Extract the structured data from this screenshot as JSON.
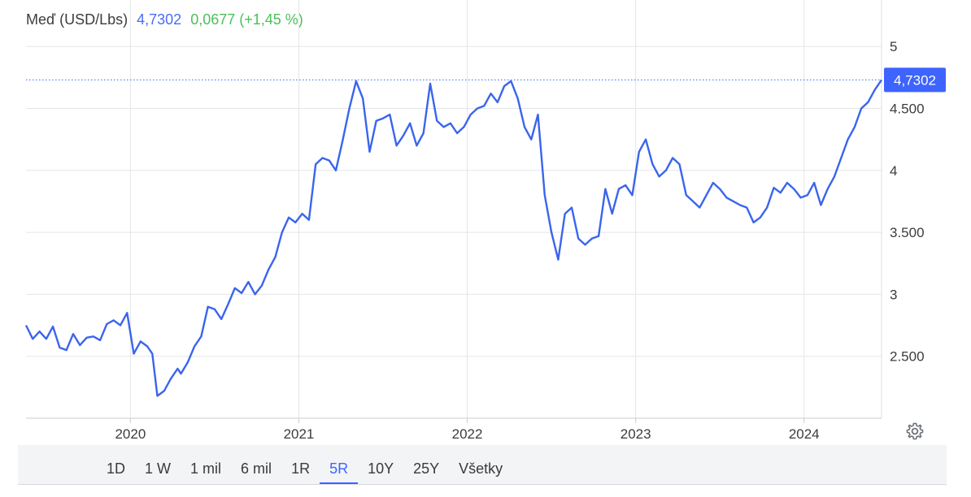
{
  "header": {
    "name": "Meď (USD/Lbs)",
    "price": "4,7302",
    "change": "0,0677 (+1,45 %)"
  },
  "price_tag": "4,7302",
  "tabs": [
    {
      "label": "1D",
      "active": false
    },
    {
      "label": "1 W",
      "active": false
    },
    {
      "label": "1 mil",
      "active": false
    },
    {
      "label": "6 mil",
      "active": false
    },
    {
      "label": "1R",
      "active": false
    },
    {
      "label": "5R",
      "active": true
    },
    {
      "label": "10Y",
      "active": false
    },
    {
      "label": "25Y",
      "active": false
    },
    {
      "label": "Všetky",
      "active": false
    }
  ],
  "colors": {
    "line": "#3a65ec",
    "price_tag_bg": "#3e64ff",
    "change_positive": "#4bbf5a",
    "price_text": "#4a6cf7",
    "grid": "#e3e5e8"
  },
  "icons": {
    "settings": "gear-icon"
  },
  "chart_data": {
    "type": "line",
    "title": "Meď (USD/Lbs)",
    "xlabel": "",
    "ylabel": "",
    "grid": true,
    "ylim": [
      2.0,
      5.1
    ],
    "xlim": [
      2019.38,
      2024.46
    ],
    "yticks": [
      2.5,
      3,
      3.5,
      4,
      4.5,
      5
    ],
    "ytick_labels": [
      "2.500",
      "3",
      "3.500",
      "4",
      "4.500",
      "5"
    ],
    "xticks": [
      2020,
      2021,
      2022,
      2023,
      2024
    ],
    "xtick_labels": [
      "2020",
      "2021",
      "2022",
      "2023",
      "2024"
    ],
    "last_value": 4.7302,
    "series": [
      {
        "name": "",
        "x": [
          2019.38,
          2019.42,
          2019.46,
          2019.5,
          2019.54,
          2019.58,
          2019.62,
          2019.66,
          2019.7,
          2019.74,
          2019.78,
          2019.82,
          2019.86,
          2019.9,
          2019.94,
          2019.98,
          2020.02,
          2020.06,
          2020.1,
          2020.13,
          2020.16,
          2020.2,
          2020.24,
          2020.28,
          2020.3,
          2020.34,
          2020.38,
          2020.42,
          2020.46,
          2020.5,
          2020.54,
          2020.58,
          2020.62,
          2020.66,
          2020.7,
          2020.74,
          2020.78,
          2020.82,
          2020.86,
          2020.9,
          2020.94,
          2020.98,
          2021.02,
          2021.06,
          2021.1,
          2021.14,
          2021.18,
          2021.22,
          2021.26,
          2021.3,
          2021.34,
          2021.38,
          2021.42,
          2021.46,
          2021.5,
          2021.54,
          2021.58,
          2021.62,
          2021.66,
          2021.7,
          2021.74,
          2021.78,
          2021.82,
          2021.86,
          2021.9,
          2021.94,
          2021.98,
          2022.02,
          2022.06,
          2022.1,
          2022.14,
          2022.18,
          2022.22,
          2022.26,
          2022.3,
          2022.34,
          2022.38,
          2022.42,
          2022.46,
          2022.5,
          2022.54,
          2022.58,
          2022.62,
          2022.66,
          2022.7,
          2022.74,
          2022.78,
          2022.82,
          2022.86,
          2022.9,
          2022.94,
          2022.98,
          2023.02,
          2023.06,
          2023.1,
          2023.14,
          2023.18,
          2023.22,
          2023.26,
          2023.3,
          2023.34,
          2023.38,
          2023.42,
          2023.46,
          2023.5,
          2023.54,
          2023.58,
          2023.62,
          2023.66,
          2023.7,
          2023.74,
          2023.78,
          2023.82,
          2023.86,
          2023.9,
          2023.94,
          2023.98,
          2024.02,
          2024.06,
          2024.1,
          2024.14,
          2024.18,
          2024.22,
          2024.26,
          2024.3,
          2024.34,
          2024.38,
          2024.42,
          2024.46
        ],
        "y": [
          2.75,
          2.64,
          2.7,
          2.64,
          2.74,
          2.57,
          2.55,
          2.68,
          2.59,
          2.65,
          2.66,
          2.63,
          2.76,
          2.79,
          2.75,
          2.85,
          2.52,
          2.62,
          2.58,
          2.52,
          2.18,
          2.22,
          2.32,
          2.4,
          2.36,
          2.45,
          2.58,
          2.66,
          2.9,
          2.88,
          2.8,
          2.92,
          3.05,
          3.01,
          3.1,
          3.0,
          3.07,
          3.2,
          3.3,
          3.5,
          3.62,
          3.58,
          3.65,
          3.6,
          4.05,
          4.1,
          4.08,
          4.0,
          4.24,
          4.5,
          4.72,
          4.58,
          4.15,
          4.4,
          4.42,
          4.45,
          4.2,
          4.28,
          4.38,
          4.2,
          4.3,
          4.7,
          4.4,
          4.35,
          4.38,
          4.3,
          4.35,
          4.45,
          4.5,
          4.52,
          4.62,
          4.55,
          4.68,
          4.72,
          4.58,
          4.35,
          4.25,
          4.45,
          3.8,
          3.5,
          3.28,
          3.65,
          3.7,
          3.45,
          3.4,
          3.45,
          3.47,
          3.85,
          3.65,
          3.85,
          3.88,
          3.8,
          4.15,
          4.25,
          4.05,
          3.95,
          4.0,
          4.1,
          4.05,
          3.8,
          3.75,
          3.7,
          3.8,
          3.9,
          3.85,
          3.78,
          3.75,
          3.72,
          3.7,
          3.58,
          3.62,
          3.7,
          3.86,
          3.82,
          3.9,
          3.85,
          3.78,
          3.8,
          3.9,
          3.72,
          3.85,
          3.95,
          4.1,
          4.25,
          4.35,
          4.5,
          4.55,
          4.65,
          4.7302
        ]
      }
    ]
  }
}
